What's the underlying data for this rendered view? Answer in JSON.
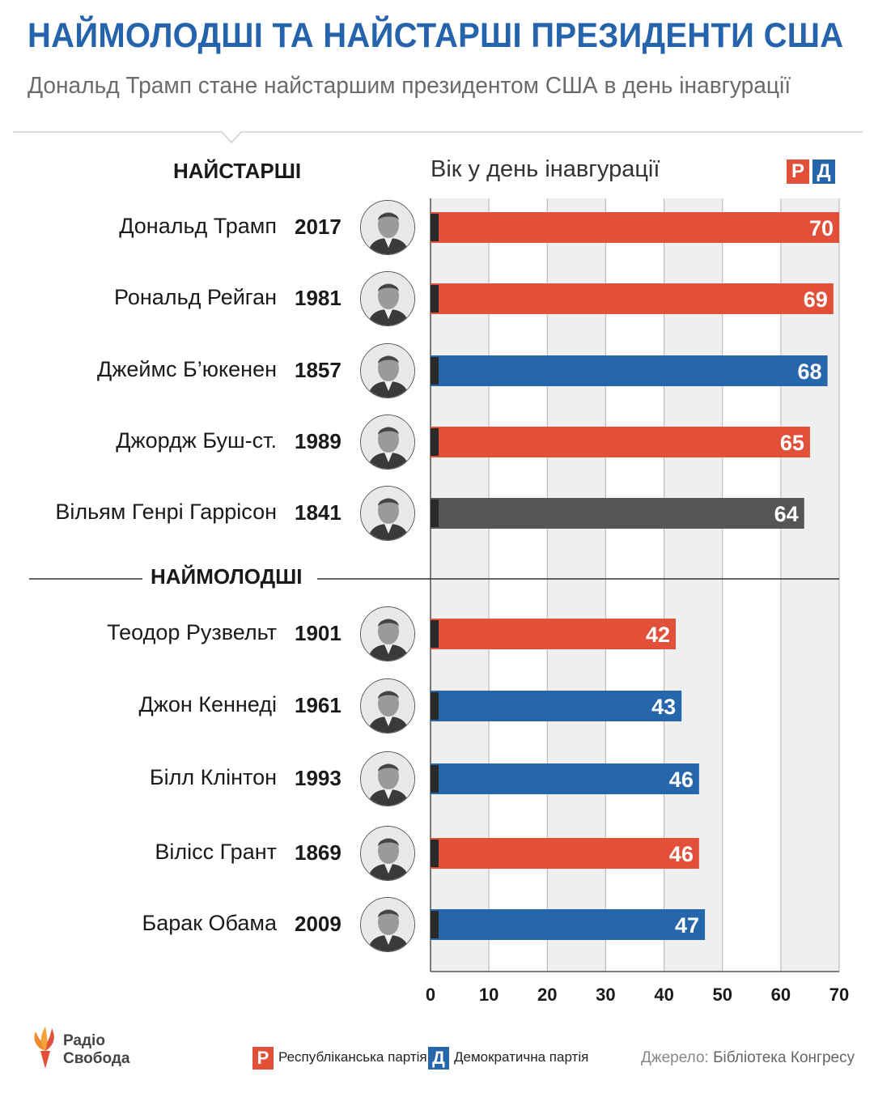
{
  "title": "НАЙМОЛОДШІ ТА НАЙСТАРШІ ПРЕЗИДЕНТИ США",
  "subtitle": "Дональд Трамп стане найстаршим президентом США в день інавгурації",
  "sections": {
    "oldest": "НАЙСТАРШІ",
    "youngest": "НАЙМОЛОДШІ"
  },
  "axis_caption": "Вік у день інавгурації",
  "party_badges": {
    "r": "Р",
    "d": "Д"
  },
  "colors": {
    "republican": "#e2503a",
    "democratic": "#2666ab",
    "other": "#555555",
    "title": "#2563ac",
    "plot_bg": "#efefef"
  },
  "rows": [
    {
      "name": "Дональд Трамп",
      "year": "2017",
      "age": 70,
      "party": "republican",
      "portrait": "trump-portrait-icon"
    },
    {
      "name": "Рональд Рейган",
      "year": "1981",
      "age": 69,
      "party": "republican",
      "portrait": "reagan-portrait-icon"
    },
    {
      "name": "Джеймс Б’юкенен",
      "year": "1857",
      "age": 68,
      "party": "democratic",
      "portrait": "buchanan-portrait-icon"
    },
    {
      "name": "Джордж Буш-ст.",
      "year": "1989",
      "age": 65,
      "party": "republican",
      "portrait": "bush-portrait-icon"
    },
    {
      "name": "Вільям Генрі Гаррісон",
      "year": "1841",
      "age": 64,
      "party": "other",
      "portrait": "harrison-portrait-icon"
    },
    {
      "name": "Теодор Рузвельт",
      "year": "1901",
      "age": 42,
      "party": "republican",
      "portrait": "roosevelt-portrait-icon"
    },
    {
      "name": "Джон Кеннеді",
      "year": "1961",
      "age": 43,
      "party": "democratic",
      "portrait": "kennedy-portrait-icon"
    },
    {
      "name": "Білл Клінтон",
      "year": "1993",
      "age": 46,
      "party": "democratic",
      "portrait": "clinton-portrait-icon"
    },
    {
      "name": "Вілісс Грант",
      "year": "1869",
      "age": 46,
      "party": "republican",
      "portrait": "grant-portrait-icon"
    },
    {
      "name": "Барак Обама",
      "year": "2009",
      "age": 47,
      "party": "democratic",
      "portrait": "obama-portrait-icon"
    }
  ],
  "chart_data": {
    "type": "bar",
    "orientation": "horizontal",
    "title": "НАЙМОЛОДШІ ТА НАЙСТАРШІ ПРЕЗИДЕНТИ США",
    "xlabel": "Вік у день інавгурації",
    "xlim": [
      0,
      70
    ],
    "xticks": [
      "0",
      "10",
      "20",
      "30",
      "40",
      "50",
      "60",
      "70"
    ],
    "grid": true,
    "categories": [
      "Дональд Трамп",
      "Рональд Рейган",
      "Джеймс Б’юкенен",
      "Джордж Буш-ст.",
      "Вільям Генрі Гаррісон",
      "Теодор Рузвельт",
      "Джон Кеннеді",
      "Білл Клінтон",
      "Вілісс Грант",
      "Барак Обама"
    ],
    "values": [
      70,
      69,
      68,
      65,
      64,
      42,
      43,
      46,
      46,
      47
    ]
  },
  "legend": {
    "republican_label": "Республіканська партія",
    "democratic_label": "Демократична партія"
  },
  "source": {
    "label": "Джерело:",
    "value": "Бібліотека Конгресу"
  },
  "logo": {
    "line1": "Радіо",
    "line2": "Свобода"
  }
}
